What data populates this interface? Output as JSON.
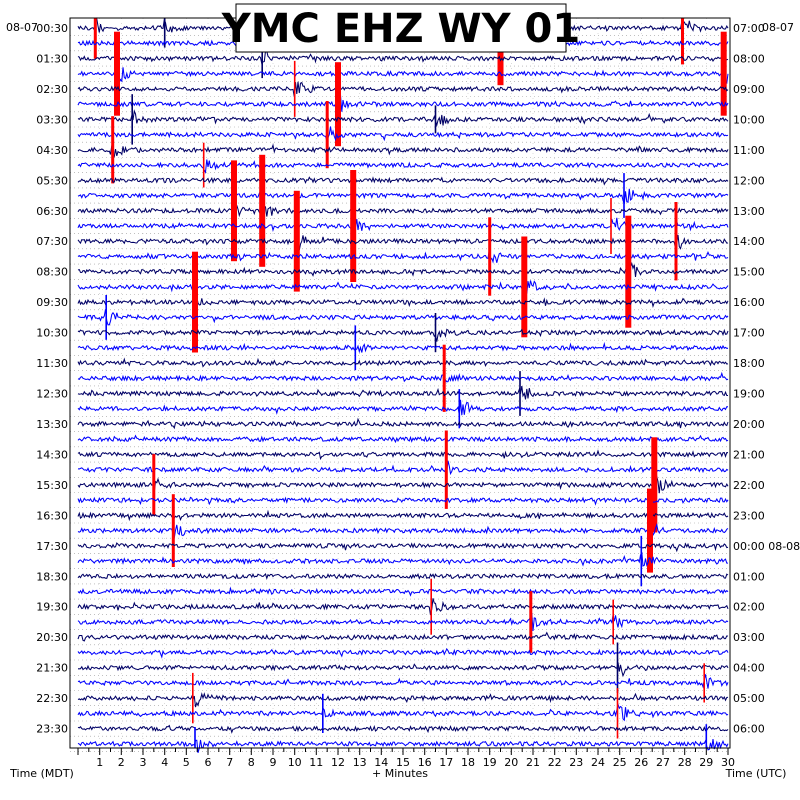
{
  "chart_data": {
    "type": "helicorder",
    "title": "YMC EHZ WY 01",
    "date_left": "08-07",
    "date_right": "08-07",
    "xlabel": "+ Minutes",
    "xlabel_left": "Time (MDT)",
    "xlabel_right": "Time (UTC)",
    "x_ticks": [
      "1",
      "2",
      "3",
      "4",
      "5",
      "6",
      "7",
      "8",
      "9",
      "10",
      "11",
      "12",
      "13",
      "14",
      "15",
      "16",
      "17",
      "18",
      "19",
      "20",
      "21",
      "22",
      "23",
      "24",
      "25",
      "26",
      "27",
      "28",
      "29",
      "30"
    ],
    "xlim": [
      0,
      30
    ],
    "left_hour_labels": [
      "00:30",
      "01:30",
      "02:30",
      "03:30",
      "04:30",
      "05:30",
      "06:30",
      "07:30",
      "08:30",
      "09:30",
      "10:30",
      "11:30",
      "12:30",
      "13:30",
      "14:30",
      "15:30",
      "16:30",
      "17:30",
      "18:30",
      "19:30",
      "20:30",
      "21:30",
      "22:30",
      "23:30"
    ],
    "right_hour_labels": [
      "07:00",
      "08:00",
      "09:00",
      "10:00",
      "11:00",
      "12:00",
      "13:00",
      "14:00",
      "15:00",
      "16:00",
      "17:00",
      "18:00",
      "19:00",
      "20:00",
      "21:00",
      "22:00",
      "23:00",
      "00:00 08-08",
      "01:00",
      "02:00",
      "03:00",
      "04:00",
      "05:00",
      "06:00"
    ],
    "trace_count": 48,
    "trace_colors": [
      "#000066",
      "#0000ff"
    ],
    "clip_color": "#ff0000",
    "grid": true,
    "events": [
      {
        "trace": 0,
        "minute": 0.8,
        "amp": 22,
        "clipped": true
      },
      {
        "trace": 0,
        "minute": 4.0,
        "amp": 14,
        "clipped": false
      },
      {
        "trace": 0,
        "minute": 27.9,
        "amp": 26,
        "clipped": true
      },
      {
        "trace": 1,
        "minute": 19.5,
        "amp": 30,
        "clipped": true
      },
      {
        "trace": 2,
        "minute": 8.5,
        "amp": 14,
        "clipped": false
      },
      {
        "trace": 3,
        "minute": 1.8,
        "amp": 30,
        "clipped": true
      },
      {
        "trace": 3,
        "minute": 29.8,
        "amp": 30,
        "clipped": true
      },
      {
        "trace": 4,
        "minute": 10.0,
        "amp": 20,
        "clipped": true
      },
      {
        "trace": 5,
        "minute": 12.0,
        "amp": 30,
        "clipped": true
      },
      {
        "trace": 6,
        "minute": 2.5,
        "amp": 18,
        "clipped": false
      },
      {
        "trace": 6,
        "minute": 16.5,
        "amp": 10,
        "clipped": false
      },
      {
        "trace": 7,
        "minute": 11.5,
        "amp": 24,
        "clipped": true
      },
      {
        "trace": 8,
        "minute": 1.6,
        "amp": 24,
        "clipped": true
      },
      {
        "trace": 9,
        "minute": 5.8,
        "amp": 16,
        "clipped": true
      },
      {
        "trace": 11,
        "minute": 25.2,
        "amp": 16,
        "clipped": false
      },
      {
        "trace": 12,
        "minute": 7.2,
        "amp": 36,
        "clipped": true
      },
      {
        "trace": 12,
        "minute": 8.5,
        "amp": 40,
        "clipped": true
      },
      {
        "trace": 13,
        "minute": 12.7,
        "amp": 40,
        "clipped": true
      },
      {
        "trace": 13,
        "minute": 24.6,
        "amp": 20,
        "clipped": true
      },
      {
        "trace": 14,
        "minute": 10.1,
        "amp": 36,
        "clipped": true
      },
      {
        "trace": 14,
        "minute": 27.6,
        "amp": 28,
        "clipped": true
      },
      {
        "trace": 15,
        "minute": 19.0,
        "amp": 28,
        "clipped": true
      },
      {
        "trace": 16,
        "minute": 25.4,
        "amp": 40,
        "clipped": true
      },
      {
        "trace": 17,
        "minute": 20.6,
        "amp": 36,
        "clipped": true
      },
      {
        "trace": 18,
        "minute": 5.4,
        "amp": 36,
        "clipped": true
      },
      {
        "trace": 19,
        "minute": 1.3,
        "amp": 16,
        "clipped": false
      },
      {
        "trace": 20,
        "minute": 16.5,
        "amp": 14,
        "clipped": false
      },
      {
        "trace": 21,
        "minute": 12.8,
        "amp": 16,
        "clipped": false
      },
      {
        "trace": 23,
        "minute": 16.9,
        "amp": 24,
        "clipped": true
      },
      {
        "trace": 24,
        "minute": 20.4,
        "amp": 16,
        "clipped": false
      },
      {
        "trace": 25,
        "minute": 17.6,
        "amp": 14,
        "clipped": false
      },
      {
        "trace": 29,
        "minute": 17.0,
        "amp": 28,
        "clipped": true
      },
      {
        "trace": 30,
        "minute": 3.5,
        "amp": 22,
        "clipped": true
      },
      {
        "trace": 30,
        "minute": 26.6,
        "amp": 34,
        "clipped": true
      },
      {
        "trace": 33,
        "minute": 4.4,
        "amp": 26,
        "clipped": true
      },
      {
        "trace": 33,
        "minute": 26.4,
        "amp": 30,
        "clipped": true
      },
      {
        "trace": 35,
        "minute": 26.0,
        "amp": 18,
        "clipped": false
      },
      {
        "trace": 38,
        "minute": 16.3,
        "amp": 20,
        "clipped": true
      },
      {
        "trace": 39,
        "minute": 20.9,
        "amp": 22,
        "clipped": true
      },
      {
        "trace": 39,
        "minute": 24.7,
        "amp": 16,
        "clipped": true
      },
      {
        "trace": 42,
        "minute": 24.9,
        "amp": 18,
        "clipped": false
      },
      {
        "trace": 43,
        "minute": 28.9,
        "amp": 14,
        "clipped": true
      },
      {
        "trace": 44,
        "minute": 5.3,
        "amp": 18,
        "clipped": true
      },
      {
        "trace": 45,
        "minute": 11.3,
        "amp": 14,
        "clipped": false
      },
      {
        "trace": 45,
        "minute": 24.9,
        "amp": 18,
        "clipped": true
      },
      {
        "trace": 47,
        "minute": 5.4,
        "amp": 12,
        "clipped": false
      },
      {
        "trace": 47,
        "minute": 29.0,
        "amp": 14,
        "clipped": false
      }
    ]
  }
}
